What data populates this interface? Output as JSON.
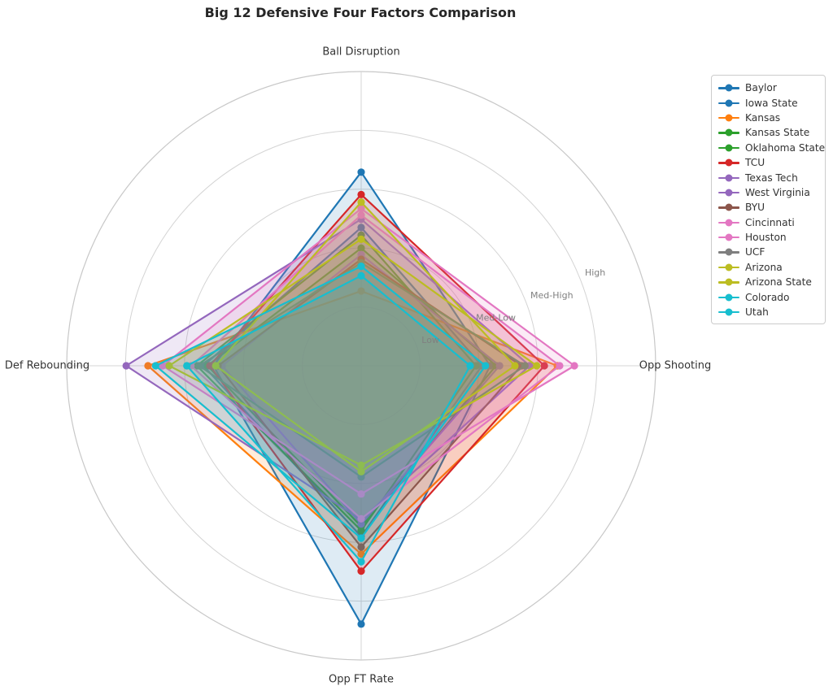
{
  "title": "Big 12 Defensive Four Factors Comparison",
  "chart_data": {
    "type": "radar",
    "axes": [
      "Ball Disruption",
      "Opp Shooting",
      "Opp FT Rate",
      "Def Rebounding"
    ],
    "radial_ticks": {
      "labels": [
        "Low",
        "Med-Low",
        "Med-High",
        "High"
      ],
      "values": [
        1,
        2,
        3,
        4
      ]
    },
    "r_min": 0,
    "r_max": 5,
    "grid": "on",
    "legend_position": "upper right",
    "series": [
      {
        "name": "Baylor",
        "color": "#1f77b4",
        "values": [
          2.35,
          2.05,
          2.9,
          2.68
        ]
      },
      {
        "name": "Iowa State",
        "color": "#1f77b4",
        "values": [
          3.29,
          2.19,
          4.39,
          2.51
        ]
      },
      {
        "name": "Kansas",
        "color": "#ff7f0e",
        "values": [
          1.27,
          3.33,
          3.2,
          3.62
        ]
      },
      {
        "name": "Kansas State",
        "color": "#2ca02c",
        "values": [
          2.22,
          1.95,
          2.8,
          2.79
        ]
      },
      {
        "name": "Oklahoma State",
        "color": "#2ca02c",
        "values": [
          2.0,
          2.29,
          2.73,
          2.61
        ]
      },
      {
        "name": "TCU",
        "color": "#d62728",
        "values": [
          2.91,
          3.11,
          3.49,
          2.57
        ]
      },
      {
        "name": "Texas Tech",
        "color": "#9467bd",
        "values": [
          1.89,
          2.35,
          2.69,
          2.36
        ]
      },
      {
        "name": "West Virginia",
        "color": "#9467bd",
        "values": [
          2.49,
          2.86,
          2.62,
          3.99
        ]
      },
      {
        "name": "BYU",
        "color": "#8c564b",
        "values": [
          1.81,
          2.72,
          3.08,
          2.43
        ]
      },
      {
        "name": "Cincinnati",
        "color": "#e377c2",
        "values": [
          2.56,
          3.37,
          2.6,
          2.89
        ]
      },
      {
        "name": "Houston",
        "color": "#e377c2",
        "values": [
          2.67,
          3.62,
          2.18,
          3.37
        ]
      },
      {
        "name": "UCF",
        "color": "#7f7f7f",
        "values": [
          1.75,
          2.78,
          1.89,
          2.75
        ]
      },
      {
        "name": "Arizona",
        "color": "#bcbd22",
        "values": [
          2.15,
          2.98,
          1.69,
          3.26
        ]
      },
      {
        "name": "Arizona State",
        "color": "#bcbd22",
        "values": [
          2.78,
          2.61,
          1.8,
          2.47
        ]
      },
      {
        "name": "Colorado",
        "color": "#17becf",
        "values": [
          1.69,
          2.11,
          2.93,
          3.49
        ]
      },
      {
        "name": "Utah",
        "color": "#17becf",
        "values": [
          1.53,
          1.85,
          3.33,
          2.96
        ]
      }
    ],
    "style": {
      "grid_color": "#d4d4d4",
      "tick_label_color": "#808080",
      "axis_label_color": "#333333",
      "fill_alpha": 0.15
    }
  }
}
